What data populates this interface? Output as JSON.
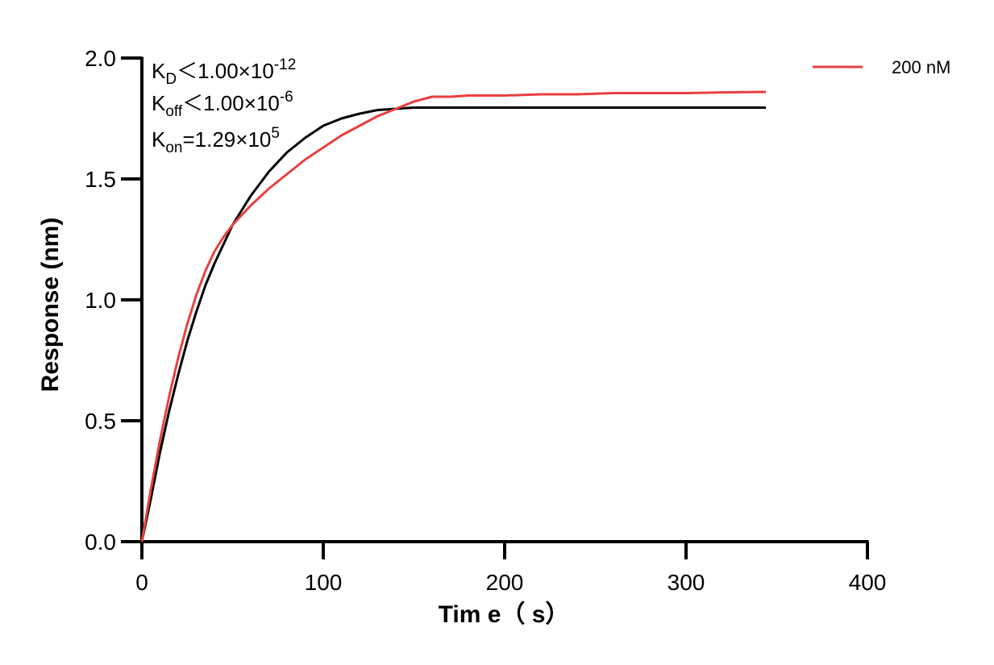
{
  "chart_data": {
    "type": "line",
    "title": "",
    "xlabel": "Tim e（ s）",
    "ylabel": "Response (nm)",
    "xlim": [
      0,
      400
    ],
    "ylim": [
      0,
      2.0
    ],
    "x_ticks": [
      0,
      100,
      200,
      300,
      400
    ],
    "y_ticks": [
      0.0,
      0.5,
      1.0,
      1.5,
      2.0
    ],
    "x_tick_labels": [
      "0",
      "100",
      "200",
      "300",
      "400"
    ],
    "y_tick_labels": [
      "0.0",
      "0.5",
      "1.0",
      "1.5",
      "2.0"
    ],
    "grid": false,
    "legend_position": "top-right",
    "annotations": [
      {
        "main": "K",
        "sub": "D",
        "rel": "＜1.00×10",
        "sup": "-12"
      },
      {
        "main": "K",
        "sub": "off",
        "rel": "＜1.00×10",
        "sup": "-6"
      },
      {
        "main": "K",
        "sub": "on",
        "rel": "=1.29×10",
        "sup": "5"
      }
    ],
    "series": [
      {
        "name": "200 nM",
        "color": "#e8413f",
        "role": "measured",
        "x": [
          0,
          5,
          10,
          15,
          20,
          25,
          30,
          35,
          40,
          45,
          50,
          60,
          70,
          80,
          90,
          100,
          110,
          120,
          130,
          140,
          150,
          155,
          160,
          170,
          180,
          200,
          220,
          240,
          260,
          280,
          300,
          320,
          344
        ],
        "y": [
          0,
          0.22,
          0.42,
          0.6,
          0.76,
          0.9,
          1.02,
          1.12,
          1.2,
          1.26,
          1.31,
          1.39,
          1.46,
          1.52,
          1.58,
          1.63,
          1.68,
          1.72,
          1.76,
          1.79,
          1.82,
          1.83,
          1.84,
          1.84,
          1.845,
          1.845,
          1.85,
          1.85,
          1.855,
          1.855,
          1.855,
          1.858,
          1.86
        ]
      },
      {
        "color": "#000000",
        "role": "fit",
        "x": [
          0,
          5,
          10,
          15,
          20,
          25,
          30,
          35,
          40,
          50,
          60,
          70,
          80,
          90,
          100,
          110,
          120,
          130,
          140,
          150,
          152,
          160,
          200,
          250,
          300,
          344
        ],
        "y": [
          0,
          0.18,
          0.37,
          0.54,
          0.69,
          0.83,
          0.95,
          1.06,
          1.15,
          1.31,
          1.43,
          1.53,
          1.61,
          1.67,
          1.72,
          1.75,
          1.77,
          1.785,
          1.79,
          1.795,
          1.795,
          1.795,
          1.795,
          1.795,
          1.795,
          1.795
        ]
      }
    ]
  }
}
